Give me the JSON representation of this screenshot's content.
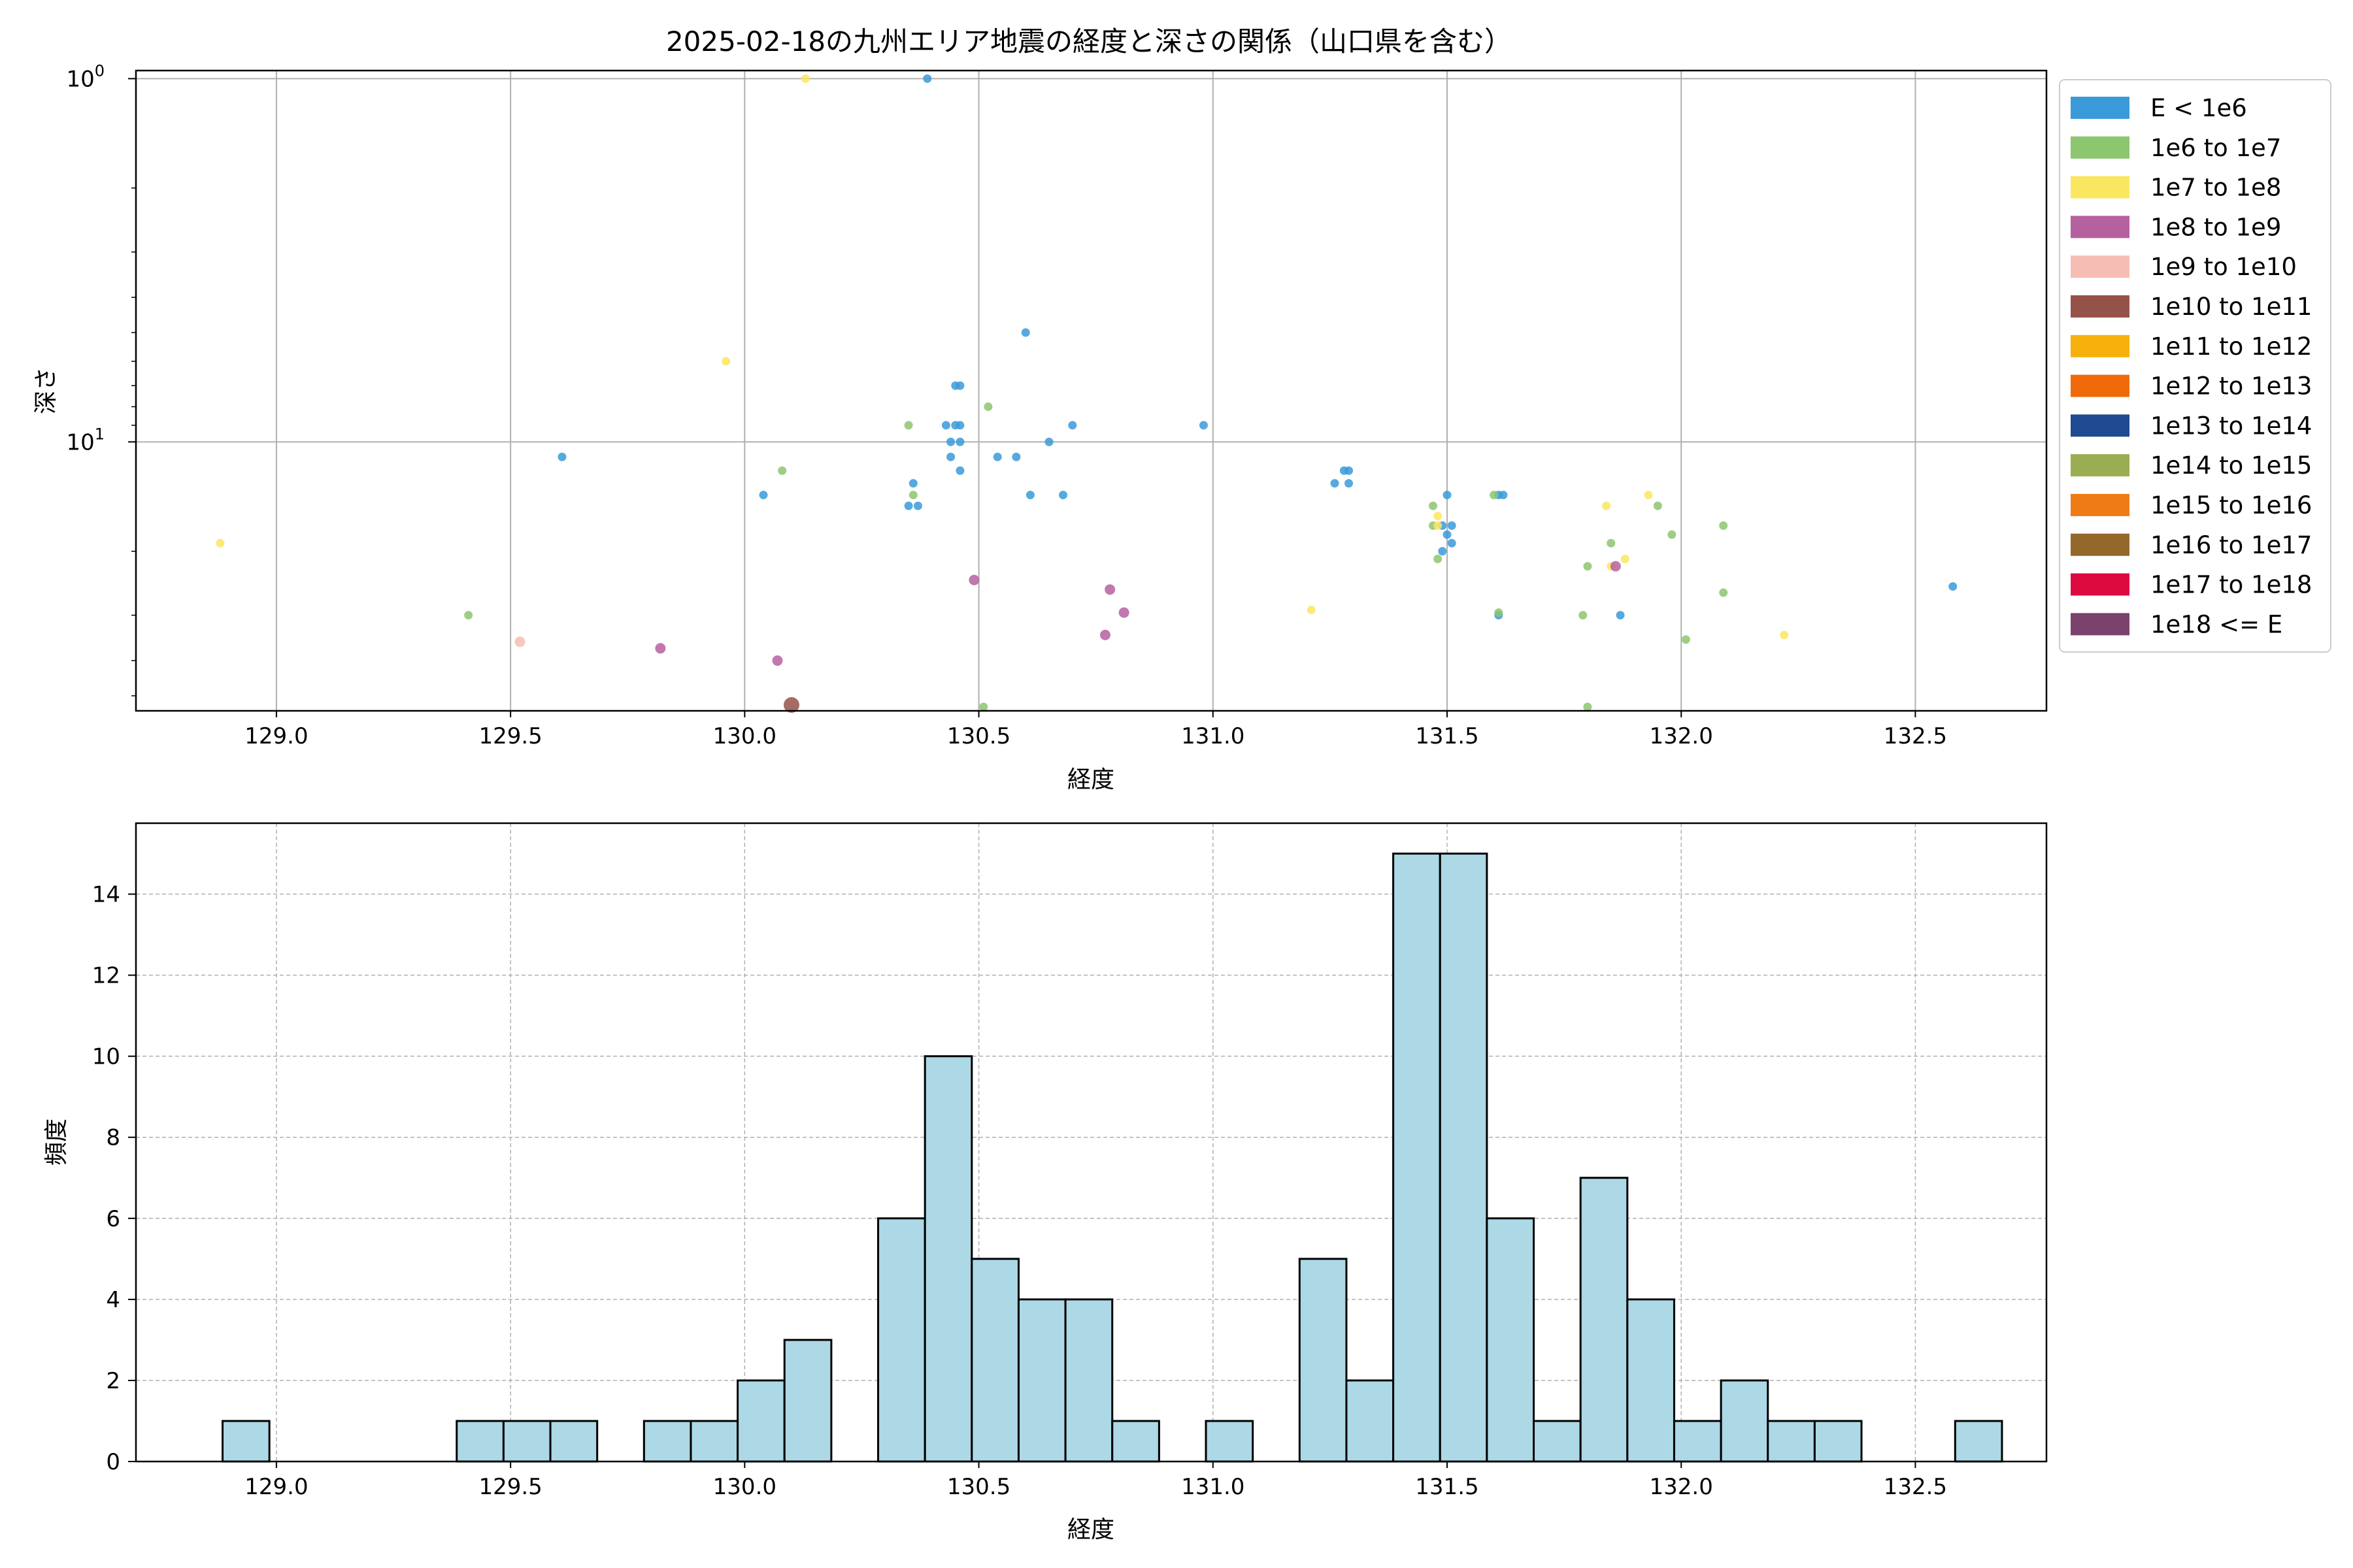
{
  "chart_data": [
    {
      "type": "scatter",
      "title": "2025-02-18の九州エリア地震の経度と深さの関係（山口県を含む）",
      "xlabel": "経度",
      "ylabel": "深さ",
      "xlim": [
        128.7,
        132.78
      ],
      "ylim": [
        55,
        0.95
      ],
      "yscale": "log",
      "y_inverted": true,
      "grid": true,
      "x_ticks": [
        {
          "value": 129.0,
          "label": "129.0"
        },
        {
          "value": 129.5,
          "label": "129.5"
        },
        {
          "value": 130.0,
          "label": "130.0"
        },
        {
          "value": 130.5,
          "label": "130.5"
        },
        {
          "value": 131.0,
          "label": "131.0"
        },
        {
          "value": 131.5,
          "label": "131.5"
        },
        {
          "value": 132.0,
          "label": "132.0"
        },
        {
          "value": 132.5,
          "label": "132.5"
        }
      ],
      "y_ticks": [
        {
          "value": 1,
          "base": "10",
          "exp": "0"
        },
        {
          "value": 10,
          "base": "10",
          "exp": "1"
        }
      ],
      "legend": {
        "position": "outside-right",
        "entries": [
          {
            "label": "E < 1e6",
            "color": "#3a9ad9"
          },
          {
            "label": "1e6 to 1e7",
            "color": "#8cc66e"
          },
          {
            "label": "1e7 to 1e8",
            "color": "#fbe660"
          },
          {
            "label": "1e8 to 1e9",
            "color": "#b5609f"
          },
          {
            "label": "1e9 to 1e10",
            "color": "#f6bdb4"
          },
          {
            "label": "1e10 to 1e11",
            "color": "#955248"
          },
          {
            "label": "1e11 to 1e12",
            "color": "#f6b10e"
          },
          {
            "label": "1e12 to 1e13",
            "color": "#f06a0a"
          },
          {
            "label": "1e13 to 1e14",
            "color": "#1d4a91"
          },
          {
            "label": "1e14 to 1e15",
            "color": "#9bad52"
          },
          {
            "label": "1e15 to 1e16",
            "color": "#ef7b16"
          },
          {
            "label": "1e16 to 1e17",
            "color": "#94672a"
          },
          {
            "label": "1e17 to 1e18",
            "color": "#dd0a3f"
          },
          {
            "label": "1e18 <= E",
            "color": "#7a426d"
          }
        ]
      },
      "points": [
        {
          "x": 130.39,
          "y": 1,
          "c": 0
        },
        {
          "x": 130.6,
          "y": 5,
          "c": 0
        },
        {
          "x": 130.45,
          "y": 7,
          "c": 0
        },
        {
          "x": 130.46,
          "y": 7,
          "c": 0
        },
        {
          "x": 130.43,
          "y": 9,
          "c": 0
        },
        {
          "x": 130.45,
          "y": 9,
          "c": 0
        },
        {
          "x": 130.46,
          "y": 9,
          "c": 0
        },
        {
          "x": 130.98,
          "y": 9,
          "c": 0
        },
        {
          "x": 130.7,
          "y": 9,
          "c": 0
        },
        {
          "x": 130.44,
          "y": 10,
          "c": 0
        },
        {
          "x": 130.46,
          "y": 10,
          "c": 0
        },
        {
          "x": 130.65,
          "y": 10,
          "c": 0
        },
        {
          "x": 129.61,
          "y": 11,
          "c": 0
        },
        {
          "x": 130.44,
          "y": 11,
          "c": 0
        },
        {
          "x": 130.54,
          "y": 11,
          "c": 0
        },
        {
          "x": 130.58,
          "y": 11,
          "c": 0
        },
        {
          "x": 130.46,
          "y": 12,
          "c": 0
        },
        {
          "x": 130.36,
          "y": 13,
          "c": 0
        },
        {
          "x": 130.04,
          "y": 14,
          "c": 0
        },
        {
          "x": 130.61,
          "y": 14,
          "c": 0
        },
        {
          "x": 130.68,
          "y": 14,
          "c": 0
        },
        {
          "x": 130.35,
          "y": 15,
          "c": 0
        },
        {
          "x": 130.37,
          "y": 15,
          "c": 0
        },
        {
          "x": 131.28,
          "y": 12,
          "c": 0
        },
        {
          "x": 131.29,
          "y": 12,
          "c": 0
        },
        {
          "x": 131.26,
          "y": 13,
          "c": 0
        },
        {
          "x": 131.29,
          "y": 13,
          "c": 0
        },
        {
          "x": 131.5,
          "y": 14,
          "c": 0
        },
        {
          "x": 131.61,
          "y": 14,
          "c": 0
        },
        {
          "x": 131.62,
          "y": 14,
          "c": 0
        },
        {
          "x": 131.49,
          "y": 17,
          "c": 0
        },
        {
          "x": 131.51,
          "y": 17,
          "c": 0
        },
        {
          "x": 131.5,
          "y": 18,
          "c": 0
        },
        {
          "x": 131.51,
          "y": 19,
          "c": 0
        },
        {
          "x": 131.49,
          "y": 20,
          "c": 0
        },
        {
          "x": 131.87,
          "y": 30,
          "c": 0
        },
        {
          "x": 131.61,
          "y": 30,
          "c": 0
        },
        {
          "x": 132.58,
          "y": 25,
          "c": 0
        },
        {
          "x": 130.35,
          "y": 9,
          "c": 1
        },
        {
          "x": 130.52,
          "y": 8,
          "c": 1
        },
        {
          "x": 130.08,
          "y": 12,
          "c": 1
        },
        {
          "x": 130.36,
          "y": 14,
          "c": 1
        },
        {
          "x": 129.41,
          "y": 30,
          "c": 1
        },
        {
          "x": 130.51,
          "y": 60,
          "c": 1
        },
        {
          "x": 131.47,
          "y": 15,
          "c": 1
        },
        {
          "x": 131.47,
          "y": 17,
          "c": 1
        },
        {
          "x": 131.48,
          "y": 21,
          "c": 1
        },
        {
          "x": 131.6,
          "y": 14,
          "c": 1
        },
        {
          "x": 131.61,
          "y": 29.5,
          "c": 1
        },
        {
          "x": 131.8,
          "y": 22,
          "c": 1
        },
        {
          "x": 131.85,
          "y": 19,
          "c": 1
        },
        {
          "x": 131.95,
          "y": 15,
          "c": 1
        },
        {
          "x": 131.98,
          "y": 18,
          "c": 1
        },
        {
          "x": 132.09,
          "y": 17,
          "c": 1
        },
        {
          "x": 132.09,
          "y": 26,
          "c": 1
        },
        {
          "x": 131.79,
          "y": 30,
          "c": 1
        },
        {
          "x": 132.01,
          "y": 35,
          "c": 1
        },
        {
          "x": 131.8,
          "y": 56,
          "c": 1
        },
        {
          "x": 130.13,
          "y": 1,
          "c": 2
        },
        {
          "x": 129.96,
          "y": 6,
          "c": 2
        },
        {
          "x": 128.88,
          "y": 19,
          "c": 2
        },
        {
          "x": 131.48,
          "y": 16,
          "c": 2
        },
        {
          "x": 131.48,
          "y": 17,
          "c": 2
        },
        {
          "x": 131.84,
          "y": 15,
          "c": 2
        },
        {
          "x": 131.93,
          "y": 14,
          "c": 2
        },
        {
          "x": 131.88,
          "y": 21,
          "c": 2
        },
        {
          "x": 131.85,
          "y": 22,
          "c": 2
        },
        {
          "x": 131.21,
          "y": 29,
          "c": 2
        },
        {
          "x": 132.22,
          "y": 34,
          "c": 2
        },
        {
          "x": 130.49,
          "y": 24,
          "c": 3
        },
        {
          "x": 130.78,
          "y": 25.5,
          "c": 3
        },
        {
          "x": 130.81,
          "y": 29.5,
          "c": 3
        },
        {
          "x": 130.77,
          "y": 34,
          "c": 3
        },
        {
          "x": 129.82,
          "y": 37,
          "c": 3
        },
        {
          "x": 130.07,
          "y": 40,
          "c": 3
        },
        {
          "x": 131.86,
          "y": 22,
          "c": 3
        },
        {
          "x": 129.52,
          "y": 35.5,
          "c": 4
        },
        {
          "x": 130.1,
          "y": 53,
          "c": 5
        }
      ]
    },
    {
      "type": "bar",
      "title": "",
      "xlabel": "経度",
      "ylabel": "頻度",
      "xlim": [
        128.7,
        132.78
      ],
      "ylim": [
        0,
        15.75
      ],
      "grid": true,
      "bar_color": "#add8e6",
      "x_ticks": [
        {
          "value": 129.0,
          "label": "129.0"
        },
        {
          "value": 129.5,
          "label": "129.5"
        },
        {
          "value": 130.0,
          "label": "130.0"
        },
        {
          "value": 130.5,
          "label": "130.5"
        },
        {
          "value": 131.0,
          "label": "131.0"
        },
        {
          "value": 131.5,
          "label": "131.5"
        },
        {
          "value": 132.0,
          "label": "132.0"
        },
        {
          "value": 132.5,
          "label": "132.5"
        }
      ],
      "y_ticks": [
        {
          "value": 0,
          "label": "0"
        },
        {
          "value": 2,
          "label": "2"
        },
        {
          "value": 4,
          "label": "4"
        },
        {
          "value": 6,
          "label": "6"
        },
        {
          "value": 8,
          "label": "8"
        },
        {
          "value": 10,
          "label": "10"
        },
        {
          "value": 12,
          "label": "12"
        },
        {
          "value": 14,
          "label": "14"
        }
      ],
      "bins": [
        {
          "x0": 128.885,
          "x1": 128.985,
          "value": 1
        },
        {
          "x0": 129.385,
          "x1": 129.485,
          "value": 1
        },
        {
          "x0": 129.485,
          "x1": 129.585,
          "value": 1
        },
        {
          "x0": 129.585,
          "x1": 129.685,
          "value": 1
        },
        {
          "x0": 129.785,
          "x1": 129.885,
          "value": 1
        },
        {
          "x0": 129.885,
          "x1": 129.985,
          "value": 1
        },
        {
          "x0": 129.985,
          "x1": 130.085,
          "value": 2
        },
        {
          "x0": 130.085,
          "x1": 130.185,
          "value": 3
        },
        {
          "x0": 130.285,
          "x1": 130.385,
          "value": 6
        },
        {
          "x0": 130.385,
          "x1": 130.485,
          "value": 10
        },
        {
          "x0": 130.485,
          "x1": 130.585,
          "value": 5
        },
        {
          "x0": 130.585,
          "x1": 130.685,
          "value": 4
        },
        {
          "x0": 130.685,
          "x1": 130.785,
          "value": 4
        },
        {
          "x0": 130.785,
          "x1": 130.885,
          "value": 1
        },
        {
          "x0": 130.985,
          "x1": 131.085,
          "value": 1
        },
        {
          "x0": 131.185,
          "x1": 131.285,
          "value": 5
        },
        {
          "x0": 131.285,
          "x1": 131.385,
          "value": 2
        },
        {
          "x0": 131.385,
          "x1": 131.485,
          "value": 15
        },
        {
          "x0": 131.485,
          "x1": 131.585,
          "value": 15
        },
        {
          "x0": 131.585,
          "x1": 131.685,
          "value": 6
        },
        {
          "x0": 131.685,
          "x1": 131.785,
          "value": 1
        },
        {
          "x0": 131.785,
          "x1": 131.885,
          "value": 7
        },
        {
          "x0": 131.885,
          "x1": 131.985,
          "value": 4
        },
        {
          "x0": 131.985,
          "x1": 132.085,
          "value": 1
        },
        {
          "x0": 132.085,
          "x1": 132.185,
          "value": 2
        },
        {
          "x0": 132.185,
          "x1": 132.285,
          "value": 1
        },
        {
          "x0": 132.285,
          "x1": 132.385,
          "value": 1
        },
        {
          "x0": 132.585,
          "x1": 132.685,
          "value": 1
        }
      ]
    }
  ]
}
